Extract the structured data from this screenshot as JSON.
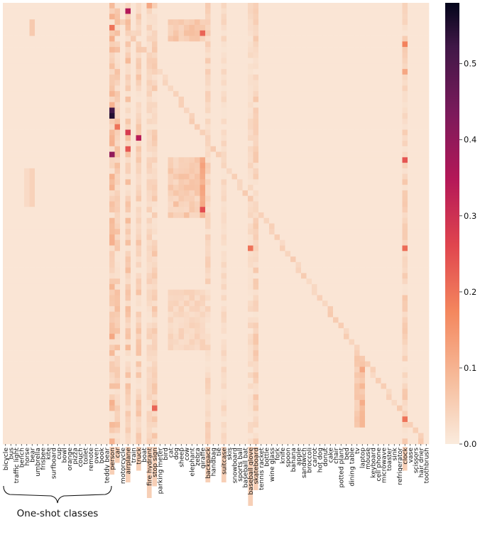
{
  "chart_data": {
    "type": "heatmap",
    "title": "",
    "xlabel": "",
    "ylabel": "",
    "one_shot_classes": [
      "bicycle",
      "bus",
      "traffic light",
      "bench",
      "horse",
      "bear",
      "umbrella",
      "frisbee",
      "kite",
      "surfboard",
      "cup",
      "bowl",
      "orange",
      "pizza",
      "couch",
      "toilet",
      "remote",
      "oven",
      "book",
      "teddy bear"
    ],
    "base_classes": [
      "person",
      "car",
      "motorcycle",
      "airplane",
      "train",
      "truck",
      "boat",
      "fire hydrant",
      "stop sign",
      "parking meter",
      "bird",
      "cat",
      "dog",
      "sheep",
      "cow",
      "elephant",
      "zebra",
      "giraffe",
      "backpack",
      "handbag",
      "tie",
      "suitcase",
      "skis",
      "snowboard",
      "sports ball",
      "baseball bat",
      "baseball glove",
      "skateboard",
      "tennis racket",
      "bottle",
      "wine glass",
      "fork",
      "knife",
      "spoon",
      "banana",
      "apple",
      "sandwich",
      "broccoli",
      "carrot",
      "hot dog",
      "donut",
      "cake",
      "chair",
      "potted plant",
      "bed",
      "dining table",
      "tv",
      "laptop",
      "mouse",
      "keyboard",
      "cell phone",
      "microwave",
      "toaster",
      "sink",
      "refrigerator",
      "clock",
      "vase",
      "scissors",
      "hair drier",
      "toothbrush"
    ],
    "group_label": "One-shot classes",
    "n_rows": 80,
    "colorbar": {
      "range": [
        0.0,
        0.58
      ],
      "ticks": [
        "0.0",
        "0.1",
        "0.2",
        "0.3",
        "0.4",
        "0.5"
      ],
      "colormap": "rocket_r"
    },
    "highlighted_x_labels": [
      "person",
      "car",
      "airplane",
      "truck",
      "fire hydrant",
      "stop sign",
      "backpack",
      "suitcase",
      "baseball glove",
      "skateboard",
      "clock"
    ],
    "value_summary": {
      "background": 0.01,
      "strong_cells": [
        {
          "row": 20,
          "col": "person",
          "value": 0.55
        },
        {
          "row": 19,
          "col": "person",
          "value": 0.52
        },
        {
          "row": 27,
          "col": "person",
          "value": 0.4
        },
        {
          "row": 1,
          "col": "airplane",
          "value": 0.35
        },
        {
          "row": 24,
          "col": "truck",
          "value": 0.34
        },
        {
          "row": 23,
          "col": "airplane",
          "value": 0.28
        },
        {
          "row": 37,
          "col": "giraffe",
          "value": 0.25
        },
        {
          "row": 5,
          "col": "giraffe",
          "value": 0.22
        },
        {
          "row": 28,
          "col": "clock",
          "value": 0.24
        },
        {
          "row": 44,
          "col": "clock",
          "value": 0.21
        },
        {
          "row": 44,
          "col": "baseball glove",
          "value": 0.2
        },
        {
          "row": 75,
          "col": "clock",
          "value": 0.2
        }
      ]
    }
  }
}
